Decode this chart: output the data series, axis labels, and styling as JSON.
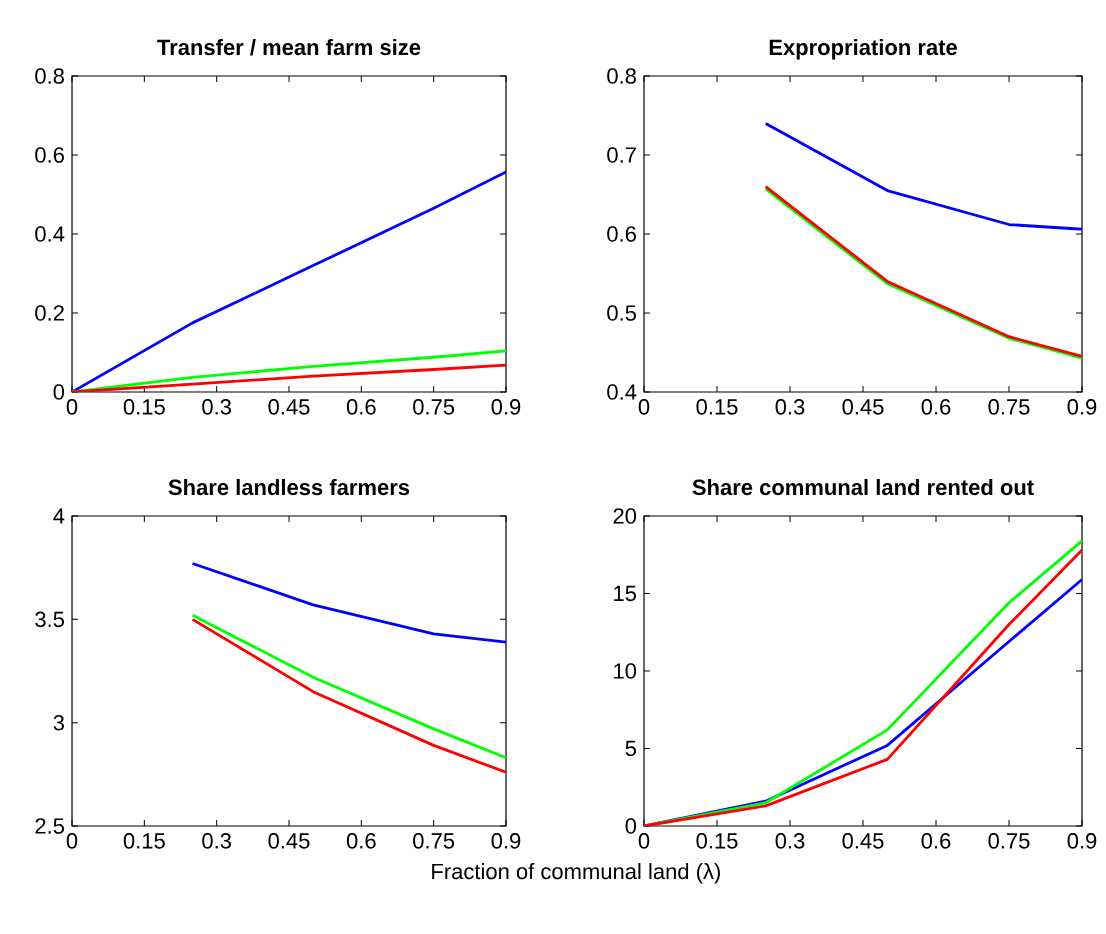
{
  "chart_data": [
    {
      "type": "line",
      "title": "Transfer / mean farm size",
      "x": [
        0,
        0.25,
        0.5,
        0.75,
        0.9
      ],
      "xlim": [
        0,
        0.9
      ],
      "xticks": [
        0,
        0.15,
        0.3,
        0.45,
        0.6,
        0.75,
        0.9
      ],
      "ylim": [
        0,
        0.8
      ],
      "yticks": [
        0,
        0.2,
        0.4,
        0.6,
        0.8
      ],
      "series": [
        {
          "color": "#0000ff",
          "values": [
            0,
            0.175,
            0.32,
            0.465,
            0.557
          ]
        },
        {
          "color": "#00ff00",
          "values": [
            0,
            0.037,
            0.065,
            0.088,
            0.104
          ]
        },
        {
          "color": "#ff0000",
          "values": [
            0,
            0.02,
            0.04,
            0.057,
            0.068
          ]
        }
      ]
    },
    {
      "type": "line",
      "title": "Expropriation rate",
      "x": [
        0.25,
        0.5,
        0.75,
        0.9
      ],
      "xlim": [
        0,
        0.9
      ],
      "xticks": [
        0,
        0.15,
        0.3,
        0.45,
        0.6,
        0.75,
        0.9
      ],
      "ylim": [
        0.4,
        0.8
      ],
      "yticks": [
        0.4,
        0.5,
        0.6,
        0.7,
        0.8
      ],
      "series": [
        {
          "color": "#0000ff",
          "values": [
            0.74,
            0.655,
            0.612,
            0.606
          ]
        },
        {
          "color": "#00ff00",
          "values": [
            0.657,
            0.537,
            0.468,
            0.443
          ]
        },
        {
          "color": "#ff0000",
          "values": [
            0.66,
            0.54,
            0.47,
            0.445
          ]
        }
      ]
    },
    {
      "type": "line",
      "title": "Share landless farmers",
      "xlabel": "Fraction of communal land (λ)",
      "x": [
        0.25,
        0.5,
        0.75,
        0.9
      ],
      "xlim": [
        0,
        0.9
      ],
      "xticks": [
        0,
        0.15,
        0.3,
        0.45,
        0.6,
        0.75,
        0.9
      ],
      "ylim": [
        2.5,
        4
      ],
      "yticks": [
        2.5,
        3,
        3.5,
        4
      ],
      "series": [
        {
          "color": "#0000ff",
          "values": [
            3.77,
            3.57,
            3.43,
            3.39
          ]
        },
        {
          "color": "#00ff00",
          "values": [
            3.52,
            3.22,
            2.97,
            2.83
          ]
        },
        {
          "color": "#ff0000",
          "values": [
            3.5,
            3.15,
            2.89,
            2.76
          ]
        }
      ]
    },
    {
      "type": "line",
      "title": "Share communal land rented out",
      "x": [
        0,
        0.25,
        0.5,
        0.75,
        0.9
      ],
      "xlim": [
        0,
        0.9
      ],
      "xticks": [
        0,
        0.15,
        0.3,
        0.45,
        0.6,
        0.75,
        0.9
      ],
      "ylim": [
        0,
        20
      ],
      "yticks": [
        0,
        5,
        10,
        15,
        20
      ],
      "series": [
        {
          "color": "#0000ff",
          "values": [
            0,
            1.6,
            5.2,
            11.9,
            15.9
          ]
        },
        {
          "color": "#00ff00",
          "values": [
            0,
            1.5,
            6.2,
            14.4,
            18.4
          ]
        },
        {
          "color": "#ff0000",
          "values": [
            0,
            1.3,
            4.3,
            13.0,
            17.8
          ]
        }
      ]
    }
  ]
}
